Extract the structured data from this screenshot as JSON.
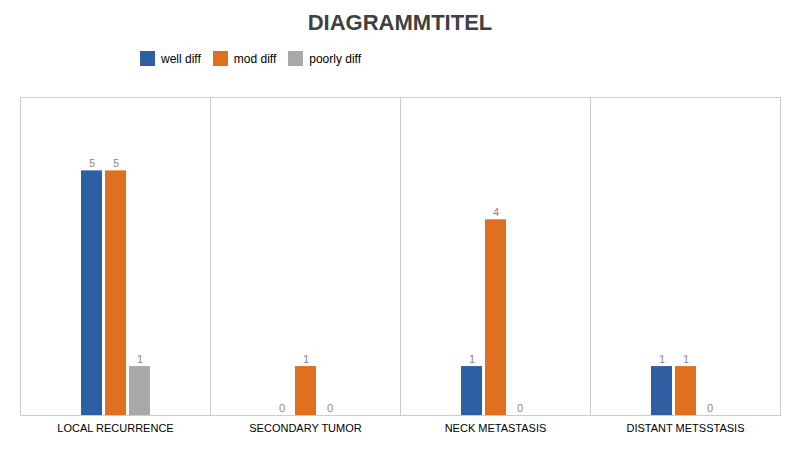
{
  "chart_data": {
    "type": "bar",
    "title": "DIAGRAMMTITEL",
    "categories": [
      "LOCAL RECURRENCE",
      "SECONDARY TUMOR",
      "NECK METASTASIS",
      "DISTANT METSSTASIS"
    ],
    "series": [
      {
        "name": "well diff",
        "color": "#2e5fa3",
        "values": [
          5,
          0,
          1,
          1
        ]
      },
      {
        "name": "mod diff",
        "color": "#e07020",
        "values": [
          5,
          1,
          4,
          1
        ]
      },
      {
        "name": "poorly diff",
        "color": "#a8a8a8",
        "values": [
          1,
          0,
          0,
          0
        ]
      }
    ],
    "ylim": [
      0,
      6.5
    ],
    "yticks": [],
    "tick_labels": "x",
    "data_labels": true,
    "grid": false,
    "legend": "top"
  }
}
